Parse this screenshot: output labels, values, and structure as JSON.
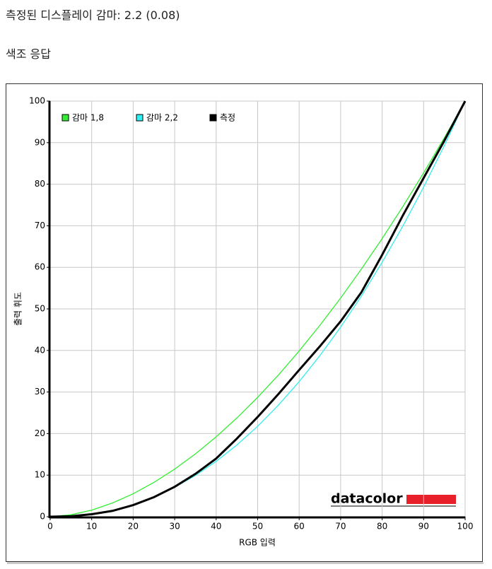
{
  "header": {
    "title": "측정된 디스플레이 감마: 2.2 (0.08)",
    "subtitle": "색조 응답"
  },
  "chart_data": {
    "type": "line",
    "xlabel": "RGB 입력",
    "ylabel": "출력 휘도",
    "logo": "datacolor",
    "x": [
      0,
      5,
      10,
      15,
      20,
      25,
      30,
      35,
      40,
      45,
      50,
      55,
      60,
      65,
      70,
      75,
      80,
      85,
      90,
      95,
      100
    ],
    "series": [
      {
        "name": "감마 1,8",
        "color": "#33ee33",
        "values": [
          0,
          0.46,
          1.58,
          3.29,
          5.52,
          8.25,
          11.45,
          15.11,
          19.22,
          23.76,
          28.72,
          34.09,
          39.87,
          46.05,
          52.62,
          59.58,
          66.92,
          74.64,
          82.72,
          91.18,
          100
        ]
      },
      {
        "name": "감마 2,2",
        "color": "#33eeee",
        "values": [
          0,
          0.14,
          0.63,
          1.54,
          2.9,
          4.74,
          7.07,
          9.93,
          13.32,
          17.26,
          21.76,
          26.84,
          32.5,
          38.76,
          45.62,
          53.1,
          61.21,
          69.94,
          79.31,
          89.33,
          100
        ]
      },
      {
        "name": "측정",
        "color": "#000000",
        "values": [
          0,
          0.1,
          0.6,
          1.4,
          2.8,
          4.7,
          7.2,
          10.3,
          14,
          18.8,
          24,
          29.5,
          35.3,
          41,
          47,
          54,
          63,
          72.5,
          81.5,
          90.5,
          100
        ]
      }
    ],
    "xlim": [
      0,
      100
    ],
    "ylim": [
      0,
      100
    ],
    "xticks": [
      0,
      10,
      20,
      30,
      40,
      50,
      60,
      70,
      80,
      90,
      100
    ],
    "yticks": [
      0,
      10,
      20,
      30,
      40,
      50,
      60,
      70,
      80,
      90,
      100
    ],
    "grid": true
  }
}
